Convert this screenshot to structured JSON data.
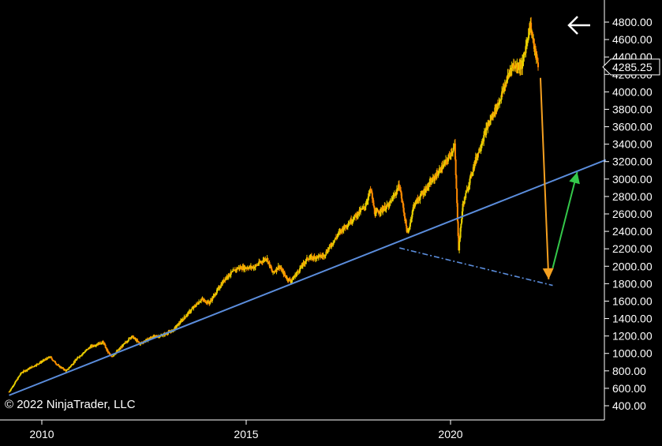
{
  "chart_data": {
    "type": "candlestick",
    "x_axis": {
      "ticks": [
        "2010",
        "2015",
        "2020"
      ],
      "range": [
        2009.2,
        2023.8
      ]
    },
    "y_axis": {
      "ticks": [
        "400.00",
        "600.00",
        "800.00",
        "1000.00",
        "1200.00",
        "1400.00",
        "1600.00",
        "1800.00",
        "2000.00",
        "2200.00",
        "2400.00",
        "2600.00",
        "2800.00",
        "3000.00",
        "3200.00",
        "3400.00",
        "3600.00",
        "3800.00",
        "4000.00",
        "4200.00",
        "4400.00",
        "4600.00",
        "4800.00"
      ],
      "range": [
        300,
        4950
      ],
      "position": "right"
    },
    "last_price": "4285.25",
    "series": [
      {
        "points": [
          [
            2009.2,
            560
          ],
          [
            2009.5,
            780
          ],
          [
            2009.9,
            880
          ],
          [
            2010.2,
            960
          ],
          [
            2010.4,
            860
          ],
          [
            2010.6,
            800
          ],
          [
            2010.9,
            960
          ],
          [
            2011.2,
            1080
          ],
          [
            2011.5,
            1130
          ],
          [
            2011.6,
            1030
          ],
          [
            2011.7,
            960
          ],
          [
            2011.9,
            1050
          ],
          [
            2012.2,
            1200
          ],
          [
            2012.4,
            1110
          ],
          [
            2012.7,
            1190
          ],
          [
            2012.9,
            1200
          ],
          [
            2013.2,
            1260
          ],
          [
            2013.5,
            1420
          ],
          [
            2013.9,
            1620
          ],
          [
            2014.1,
            1580
          ],
          [
            2014.5,
            1870
          ],
          [
            2014.8,
            1980
          ],
          [
            2015.2,
            1990
          ],
          [
            2015.5,
            2100
          ],
          [
            2015.65,
            1920
          ],
          [
            2015.8,
            2000
          ],
          [
            2016.0,
            1860
          ],
          [
            2016.1,
            1830
          ],
          [
            2016.5,
            2090
          ],
          [
            2016.9,
            2120
          ],
          [
            2017.3,
            2400
          ],
          [
            2017.9,
            2680
          ],
          [
            2018.05,
            2880
          ],
          [
            2018.15,
            2600
          ],
          [
            2018.5,
            2700
          ],
          [
            2018.75,
            2930
          ],
          [
            2018.95,
            2360
          ],
          [
            2019.1,
            2700
          ],
          [
            2019.5,
            2950
          ],
          [
            2019.9,
            3200
          ],
          [
            2020.1,
            3380
          ],
          [
            2020.2,
            2200
          ],
          [
            2020.3,
            2700
          ],
          [
            2020.6,
            3200
          ],
          [
            2020.9,
            3600
          ],
          [
            2021.2,
            3900
          ],
          [
            2021.5,
            4300
          ],
          [
            2021.75,
            4300
          ],
          [
            2021.95,
            4780
          ],
          [
            2022.05,
            4500
          ],
          [
            2022.15,
            4285
          ]
        ]
      }
    ],
    "trendline": {
      "from": [
        2009.2,
        520
      ],
      "to": [
        2023.8,
        3220
      ]
    },
    "dashed_line": {
      "from": [
        2018.75,
        2210
      ],
      "to": [
        2022.5,
        1780
      ]
    },
    "orange_arrow": {
      "from": [
        2022.2,
        4160
      ],
      "to": [
        2022.4,
        1850
      ]
    },
    "green_arrow": {
      "from": [
        2022.5,
        1980
      ],
      "to": [
        2023.1,
        3080
      ]
    },
    "colors": {
      "background": "#000000",
      "candle_up": "#e8d000",
      "candle_down": "#ff8a00",
      "trendline": "#5b8ddc",
      "dashed_line": "#5b8ddc",
      "orange_arrow": "#f5a020",
      "green_arrow": "#34c84a",
      "axis": "#ffffff"
    }
  },
  "copyright": "© 2022 NinjaTrader, LLC"
}
